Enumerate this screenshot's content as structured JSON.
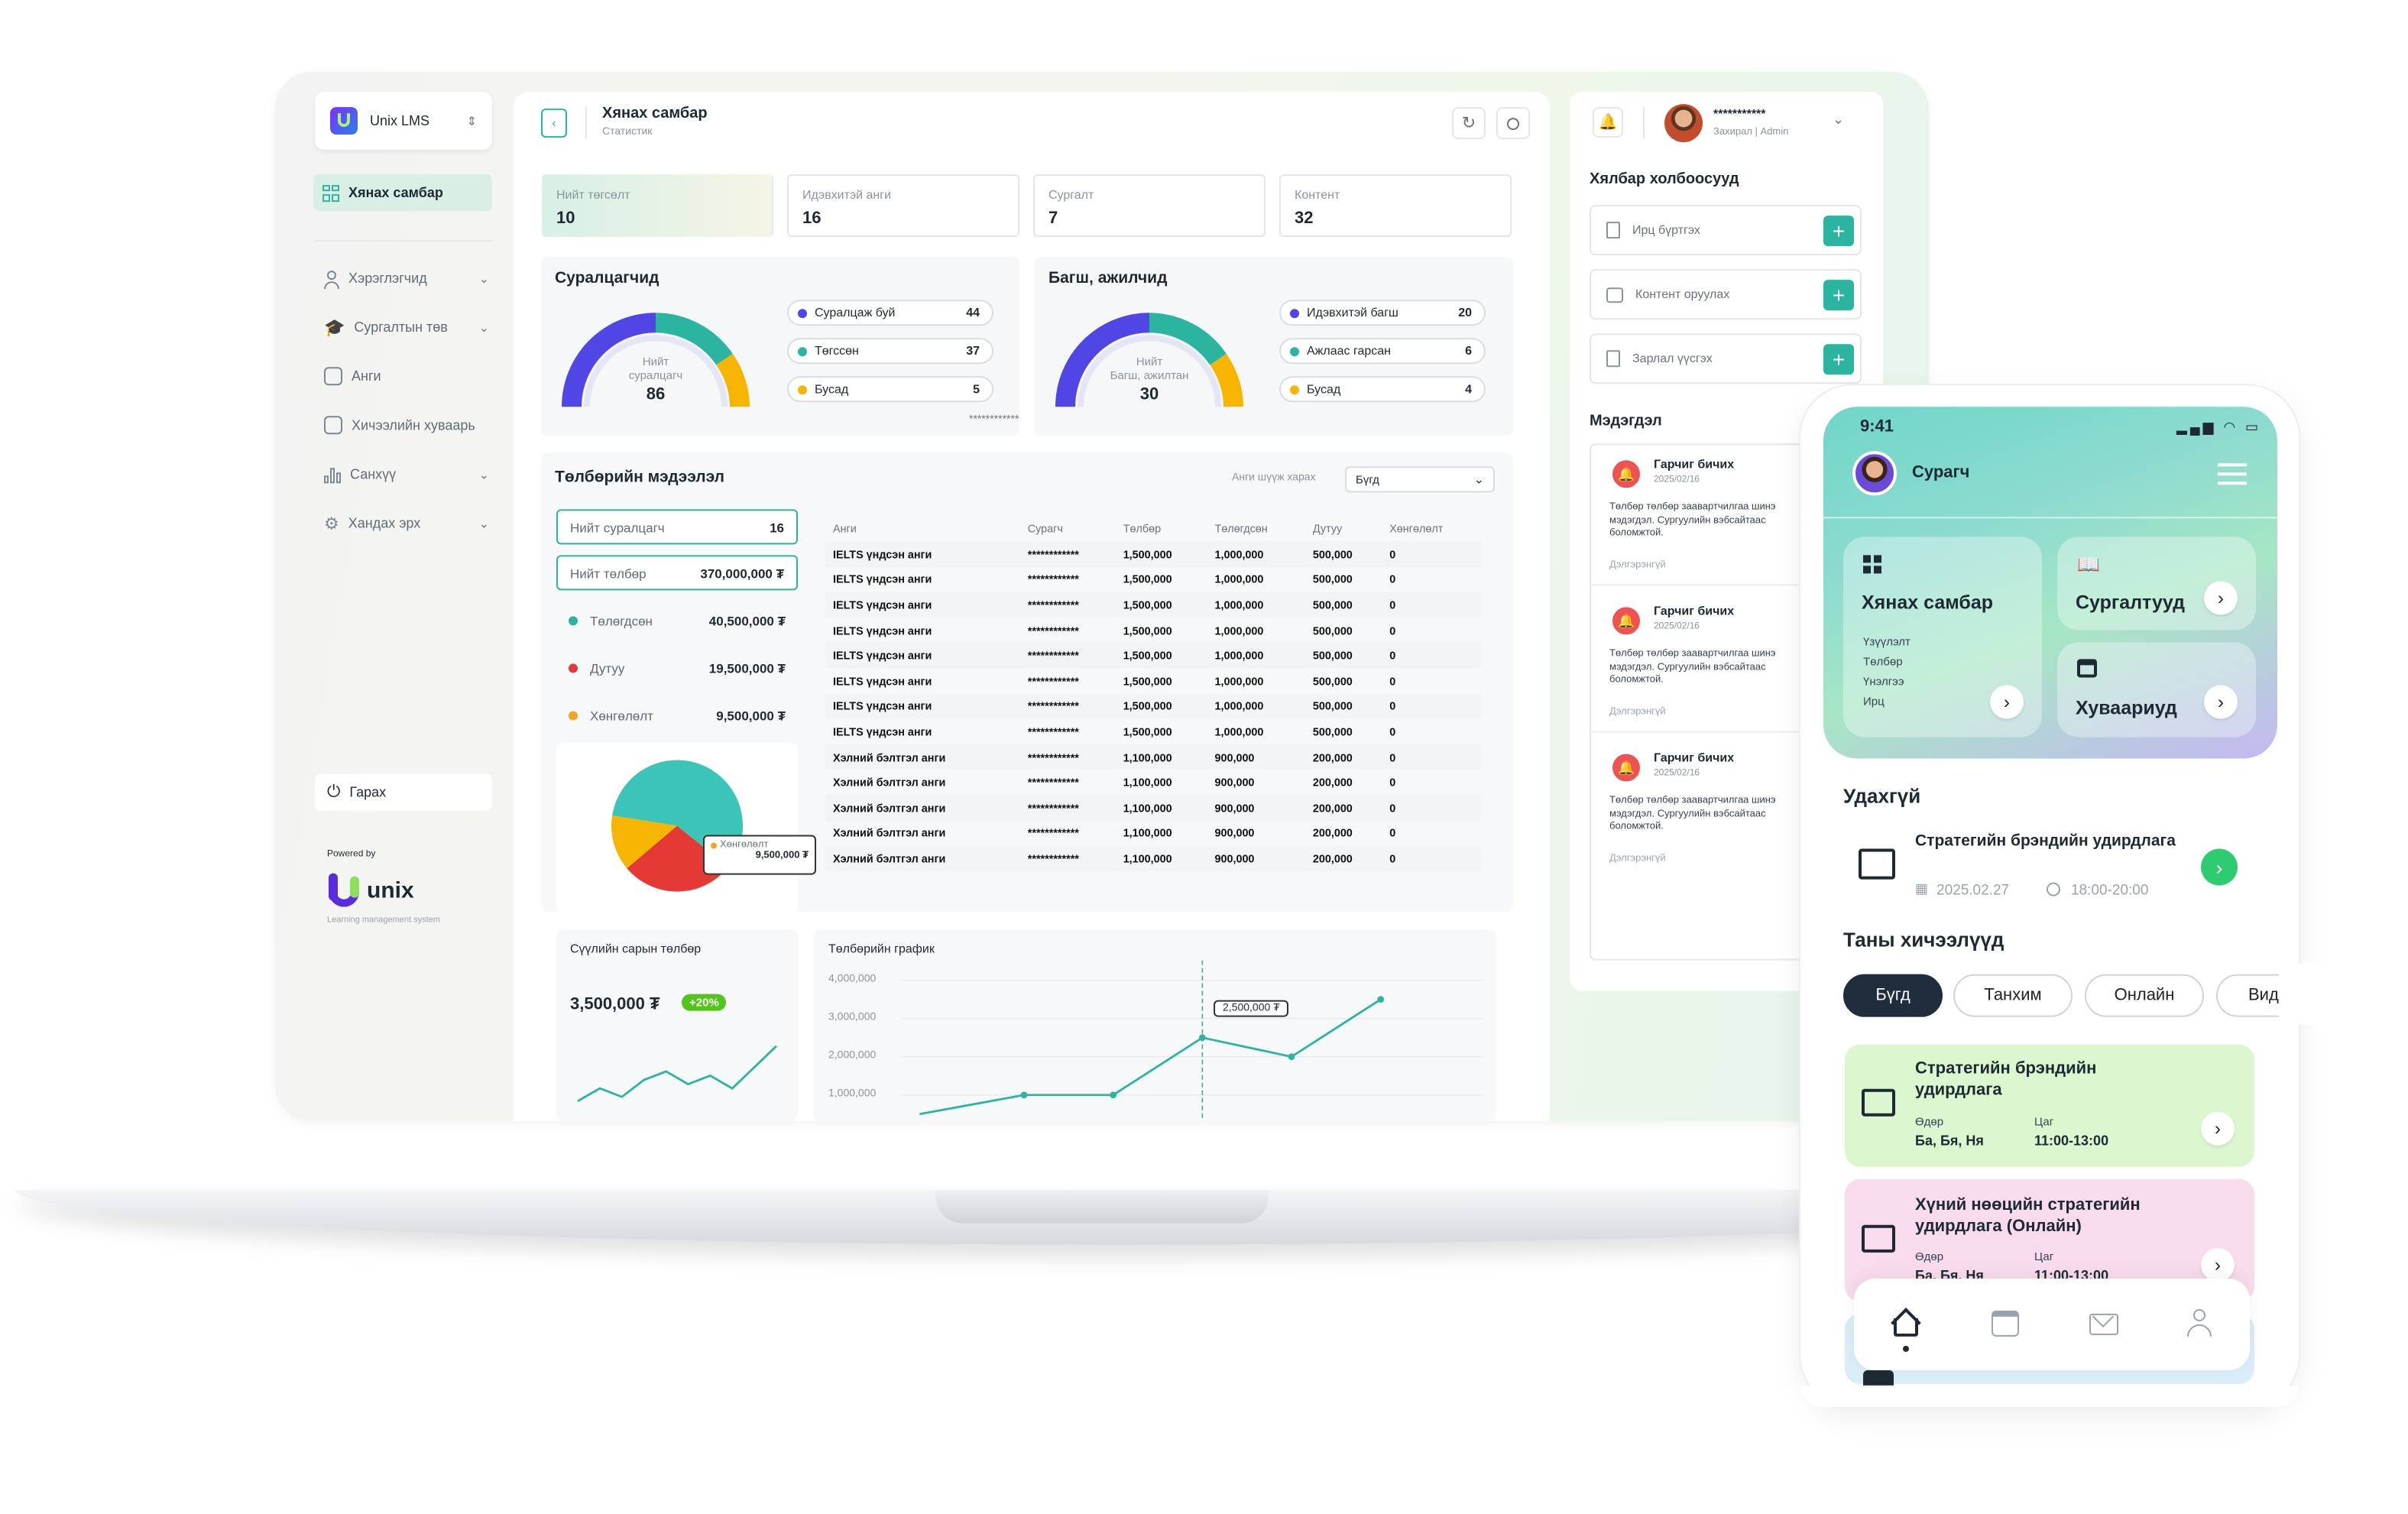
{
  "app": {
    "name": "Unix LMS",
    "page_title": "Хянах самбар",
    "page_subtitle": "Статистик"
  },
  "sidebar": {
    "active": "Хянах самбар",
    "items": [
      {
        "label": "Хэрэглэгчид",
        "icon": "user-icon",
        "expand": true
      },
      {
        "label": "Сургалтын төв",
        "icon": "graduation-cap-icon",
        "expand": true
      },
      {
        "label": "Анги",
        "icon": "classroom-icon",
        "expand": false
      },
      {
        "label": "Хичээлийн хуваарь",
        "icon": "schedule-icon",
        "expand": false
      },
      {
        "label": "Санхүү",
        "icon": "chart-icon",
        "expand": true
      },
      {
        "label": "Хандах эрх",
        "icon": "gear-icon",
        "expand": true
      }
    ],
    "logout": "Гарах",
    "powered_by": "Powered by",
    "brand": "unix",
    "brand_tagline": "Learning management system"
  },
  "stats": [
    {
      "label": "Нийт төгсөлт",
      "value": "10"
    },
    {
      "label": "Идэвхитэй анги",
      "value": "16"
    },
    {
      "label": "Сургалт",
      "value": "7"
    },
    {
      "label": "Контент",
      "value": "32"
    }
  ],
  "students": {
    "title": "Суралцагчид",
    "gauge_label_1": "Нийт",
    "gauge_label_2": "суралцагч",
    "total": "86",
    "legend": [
      {
        "label": "Суралцаж буй",
        "value": "44",
        "color": "#4f46e5"
      },
      {
        "label": "Төгссөн",
        "value": "37",
        "color": "#2bb5a0"
      },
      {
        "label": "Бусад",
        "value": "5",
        "color": "#f5a623"
      }
    ]
  },
  "teachers": {
    "title": "Багш, ажилчид",
    "gauge_label_1": "Нийт",
    "gauge_label_2": "Багш, ажилтан",
    "total": "30",
    "legend": [
      {
        "label": "Идэвхитэй багш",
        "value": "20",
        "color": "#4f46e5"
      },
      {
        "label": "Ажлаас гарсан",
        "value": "6",
        "color": "#2bb5a0"
      },
      {
        "label": "Бусад",
        "value": "4",
        "color": "#f5a623"
      }
    ]
  },
  "masked": "************",
  "payment": {
    "title": "Төлбөрийн мэдээлэл",
    "filter_label": "Анги шүүж харах",
    "filter_value": "Бүгд",
    "summary": [
      {
        "label": "Нийт суралцагч",
        "value": "16"
      },
      {
        "label": "Нийт төлбөр",
        "value": "370,000,000 ₮"
      },
      {
        "label": "Төлөгдсөн",
        "value": "40,500,000 ₮",
        "color": "#2bb5a0"
      },
      {
        "label": "Дутуу",
        "value": "19,500,000 ₮",
        "color": "#e53935"
      },
      {
        "label": "Хөнгөлөлт",
        "value": "9,500,000 ₮",
        "color": "#f5a623"
      }
    ],
    "pie_tooltip_label": "Хөнгөлөлт",
    "pie_tooltip_value": "9,500,000 ₮",
    "columns": [
      "Анги",
      "Сурагч",
      "Төлбөр",
      "Төлөгдсөн",
      "Дутуу",
      "Хөнгөлөлт"
    ],
    "rows": [
      [
        "IELTS үндсэн анги",
        "************",
        "1,500,000",
        "1,000,000",
        "500,000",
        "0"
      ],
      [
        "IELTS үндсэн анги",
        "************",
        "1,500,000",
        "1,000,000",
        "500,000",
        "0"
      ],
      [
        "IELTS үндсэн анги",
        "************",
        "1,500,000",
        "1,000,000",
        "500,000",
        "0"
      ],
      [
        "IELTS үндсэн анги",
        "************",
        "1,500,000",
        "1,000,000",
        "500,000",
        "0"
      ],
      [
        "IELTS үндсэн анги",
        "************",
        "1,500,000",
        "1,000,000",
        "500,000",
        "0"
      ],
      [
        "IELTS үндсэн анги",
        "************",
        "1,500,000",
        "1,000,000",
        "500,000",
        "0"
      ],
      [
        "IELTS үндсэн анги",
        "************",
        "1,500,000",
        "1,000,000",
        "500,000",
        "0"
      ],
      [
        "IELTS үндсэн анги",
        "************",
        "1,500,000",
        "1,000,000",
        "500,000",
        "0"
      ],
      [
        "Хэлний бэлтгэл анги",
        "************",
        "1,100,000",
        "900,000",
        "200,000",
        "0"
      ],
      [
        "Хэлний бэлтгэл анги",
        "************",
        "1,100,000",
        "900,000",
        "200,000",
        "0"
      ],
      [
        "Хэлний бэлтгэл анги",
        "************",
        "1,100,000",
        "900,000",
        "200,000",
        "0"
      ],
      [
        "Хэлний бэлтгэл анги",
        "************",
        "1,100,000",
        "900,000",
        "200,000",
        "0"
      ],
      [
        "Хэлний бэлтгэл анги",
        "************",
        "1,100,000",
        "900,000",
        "200,000",
        "0"
      ]
    ]
  },
  "last_month": {
    "title": "Сүүлийн сарын төлбөр",
    "value": "3,500,000 ₮",
    "change": "+20%"
  },
  "chart_data": [
    {
      "type": "pie",
      "categories": [
        "Төлөгдсөн",
        "Дутуу",
        "Хөнгөлөлт"
      ],
      "values": [
        40500000,
        19500000,
        9500000
      ],
      "colors": [
        "#3cc4b8",
        "#e53935",
        "#f5b500"
      ]
    },
    {
      "type": "line",
      "title": "Төлбөрийн график",
      "y_ticks": [
        "4,000,000",
        "3,000,000",
        "2,000,000",
        "1,000,000"
      ],
      "values": [
        500000,
        1000000,
        1000000,
        2500000,
        2000000,
        3500000
      ],
      "highlight_index": 3,
      "highlight_label": "2,500,000 ₮",
      "color": "#2bb5a0"
    },
    {
      "type": "line",
      "title": "Сүүлийн сарын төлбөр",
      "values": [
        1,
        4,
        2,
        6,
        8,
        5,
        7,
        4,
        9,
        14
      ],
      "color": "#2bb5a0"
    }
  ],
  "header": {
    "user_name": "***********",
    "user_role": "Захирал | Admin"
  },
  "quick_links": {
    "title": "Хялбар холбоосууд",
    "items": [
      {
        "label": "Ирц бүртгэх",
        "icon": "document-icon"
      },
      {
        "label": "Контент оруулах",
        "icon": "image-icon"
      },
      {
        "label": "Зарлал үүсгэх",
        "icon": "file-add-icon"
      }
    ]
  },
  "notifications": {
    "title": "Мэдэгдэл",
    "items": [
      {
        "title": "Гарчиг бичих",
        "date": "2025/02/16",
        "body": "Төлбөр төлбөр заавартчилгаа шинэ мэдэгдэл. Сургуулийн вэбсайтаас боломжтой.",
        "more": "Дэлгэрэнгүй"
      },
      {
        "title": "Гарчиг бичих",
        "date": "2025/02/16",
        "body": "Төлбөр төлбөр заавартчилгаа шинэ мэдэгдэл. Сургуулийн вэбсайтаас боломжтой.",
        "more": "Дэлгэрэнгүй"
      },
      {
        "title": "Гарчиг бичих",
        "date": "2025/02/16",
        "body": "Төлбөр төлбөр заавартчилгаа шинэ мэдэгдэл. Сургуулийн вэбсайтаас боломжтой.",
        "more": "Дэлгэрэнгүй"
      }
    ]
  },
  "phone": {
    "time": "9:41",
    "user_role": "Сурагч",
    "tiles": {
      "dashboard": {
        "title": "Хянах самбар",
        "lines": [
          "Үзүүлэлт",
          "Төлбөр",
          "Үнэлгээ",
          "Ирц"
        ]
      },
      "courses": {
        "title": "Сургалтууд"
      },
      "schedule": {
        "title": "Хуваариуд"
      }
    },
    "upcoming": {
      "title": "Удахгүй",
      "lesson": "Стратегийн брэндийн удирдлага",
      "date": "2025.02.27",
      "time": "18:00-20:00"
    },
    "lessons_title": "Таны хичээлүүд",
    "chips": [
      "Бүгд",
      "Танхим",
      "Онлайн",
      "Вид"
    ],
    "lessons": [
      {
        "title": "Стратегийн брэндийн удирдлага",
        "day_label": "Өдөр",
        "day": "Ба, Бя, Ня",
        "time_label": "Цаг",
        "time": "11:00-13:00",
        "color": "#dcf7cf"
      },
      {
        "title": "Хүний нөөцийн стратегийн удирдлага (Онлайн)",
        "day_label": "Өдөр",
        "day": "Ба, Бя, Ня",
        "time_label": "Цаг",
        "time": "11:00-13:00",
        "color": "#f8dcee"
      }
    ]
  }
}
